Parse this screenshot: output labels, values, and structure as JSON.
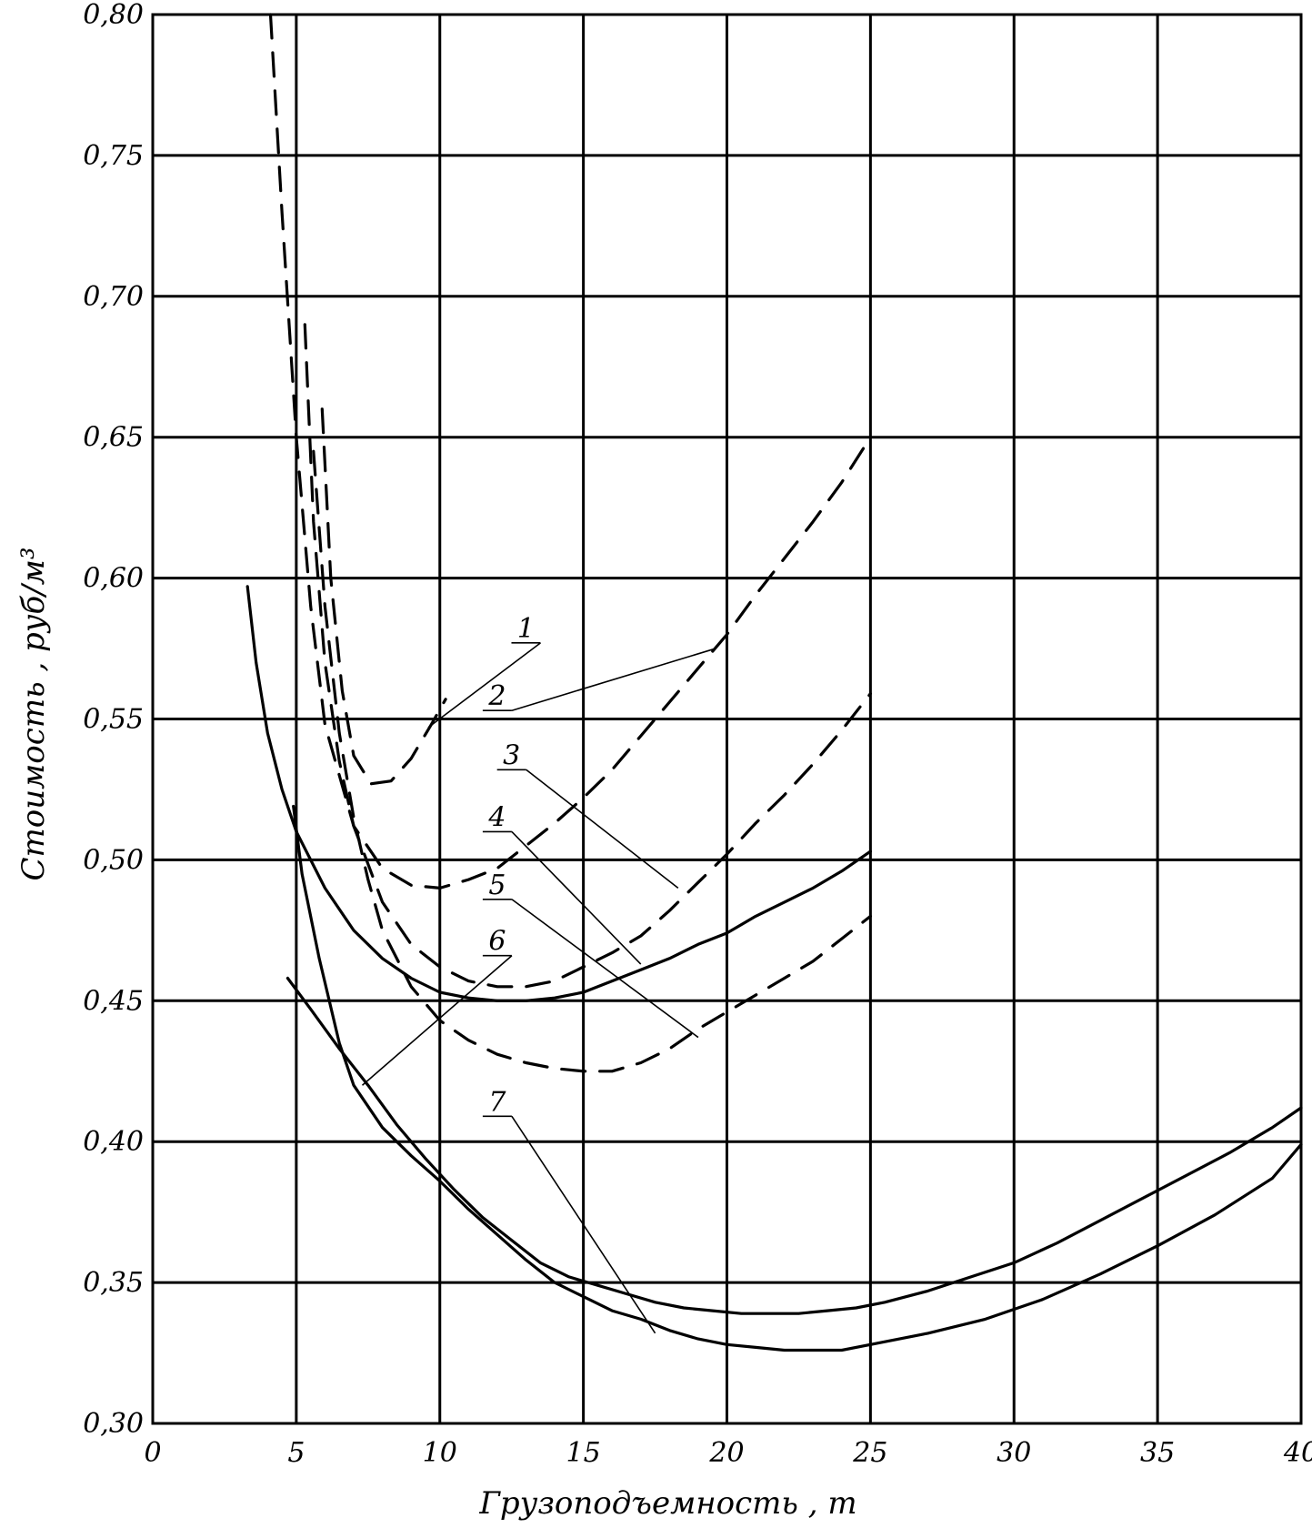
{
  "chart_data": {
    "type": "line",
    "xlabel": "Грузоподъемность , т",
    "ylabel": "Стоимость , руб/м³",
    "xlim": [
      0,
      40
    ],
    "ylim": [
      0.3,
      0.8
    ],
    "grid": true,
    "x_ticks": [
      {
        "value": 0,
        "label": "0"
      },
      {
        "value": 5,
        "label": "5"
      },
      {
        "value": 10,
        "label": "10"
      },
      {
        "value": 15,
        "label": "15"
      },
      {
        "value": 20,
        "label": "20"
      },
      {
        "value": 25,
        "label": "25"
      },
      {
        "value": 30,
        "label": "30"
      },
      {
        "value": 35,
        "label": "35"
      },
      {
        "value": 40,
        "label": "40"
      }
    ],
    "y_ticks": [
      {
        "value": 0.3,
        "label": "0,30"
      },
      {
        "value": 0.35,
        "label": "0,35"
      },
      {
        "value": 0.4,
        "label": "0,40"
      },
      {
        "value": 0.45,
        "label": "0,45"
      },
      {
        "value": 0.5,
        "label": "0,50"
      },
      {
        "value": 0.55,
        "label": "0,55"
      },
      {
        "value": 0.6,
        "label": "0,60"
      },
      {
        "value": 0.65,
        "label": "0,65"
      },
      {
        "value": 0.7,
        "label": "0,70"
      },
      {
        "value": 0.75,
        "label": "0,75"
      },
      {
        "value": 0.8,
        "label": "0,80"
      }
    ],
    "series": [
      {
        "name": "1",
        "style": "dashed",
        "points": [
          [
            5.9,
            0.66
          ],
          [
            6.2,
            0.6
          ],
          [
            6.6,
            0.56
          ],
          [
            7.0,
            0.537
          ],
          [
            7.6,
            0.527
          ],
          [
            8.3,
            0.528
          ],
          [
            9.0,
            0.536
          ],
          [
            9.7,
            0.548
          ],
          [
            10.2,
            0.557
          ]
        ],
        "label_anchor": [
          13.0,
          0.577
        ],
        "leader_to": [
          9.6,
          0.547
        ]
      },
      {
        "name": "2",
        "style": "dashed",
        "points": [
          [
            4.1,
            0.8
          ],
          [
            4.5,
            0.73
          ],
          [
            5.0,
            0.65
          ],
          [
            5.5,
            0.59
          ],
          [
            6.0,
            0.548
          ],
          [
            7.0,
            0.512
          ],
          [
            8.0,
            0.497
          ],
          [
            9.0,
            0.491
          ],
          [
            10.0,
            0.49
          ],
          [
            11.0,
            0.493
          ],
          [
            12.0,
            0.497
          ],
          [
            13.0,
            0.505
          ],
          [
            14.0,
            0.513
          ],
          [
            15.0,
            0.522
          ],
          [
            16.0,
            0.532
          ],
          [
            17.0,
            0.544
          ],
          [
            18.0,
            0.556
          ],
          [
            19.0,
            0.568
          ],
          [
            20.0,
            0.58
          ],
          [
            21.0,
            0.594
          ],
          [
            22.0,
            0.607
          ],
          [
            23.0,
            0.62
          ],
          [
            24.0,
            0.634
          ],
          [
            25.0,
            0.65
          ]
        ],
        "label_anchor": [
          12.0,
          0.553
        ],
        "leader_to": [
          19.6,
          0.575
        ]
      },
      {
        "name": "3",
        "style": "dashed",
        "points": [
          [
            5.3,
            0.69
          ],
          [
            5.6,
            0.62
          ],
          [
            6.0,
            0.57
          ],
          [
            6.5,
            0.535
          ],
          [
            7.0,
            0.512
          ],
          [
            8.0,
            0.485
          ],
          [
            9.0,
            0.47
          ],
          [
            10.0,
            0.462
          ],
          [
            11.0,
            0.457
          ],
          [
            12.0,
            0.455
          ],
          [
            13.0,
            0.455
          ],
          [
            14.0,
            0.457
          ],
          [
            15.0,
            0.462
          ],
          [
            16.0,
            0.467
          ],
          [
            17.0,
            0.473
          ],
          [
            18.0,
            0.482
          ],
          [
            19.0,
            0.492
          ],
          [
            20.0,
            0.502
          ],
          [
            21.0,
            0.513
          ],
          [
            22.0,
            0.523
          ],
          [
            23.0,
            0.534
          ],
          [
            24.0,
            0.546
          ],
          [
            25.0,
            0.559
          ]
        ],
        "label_anchor": [
          12.5,
          0.532
        ],
        "leader_to": [
          18.3,
          0.49
        ]
      },
      {
        "name": "4",
        "style": "dashed",
        "points": [
          [
            5.6,
            0.645
          ],
          [
            6.0,
            0.59
          ],
          [
            6.5,
            0.545
          ],
          [
            7.0,
            0.515
          ],
          [
            7.5,
            0.493
          ],
          [
            8.0,
            0.475
          ],
          [
            9.0,
            0.455
          ],
          [
            10.0,
            0.443
          ],
          [
            11.0,
            0.436
          ],
          [
            12.0,
            0.431
          ],
          [
            13.0,
            0.428
          ],
          [
            14.0,
            0.426
          ],
          [
            15.0,
            0.425
          ],
          [
            16.0,
            0.425
          ],
          [
            17.0,
            0.428
          ],
          [
            18.0,
            0.433
          ],
          [
            19.0,
            0.44
          ],
          [
            20.0,
            0.446
          ],
          [
            21.0,
            0.452
          ],
          [
            22.0,
            0.458
          ],
          [
            23.0,
            0.464
          ],
          [
            24.0,
            0.472
          ],
          [
            25.0,
            0.48
          ]
        ],
        "label_anchor": [
          12.0,
          0.51
        ],
        "leader_to": [
          17.0,
          0.463
        ]
      },
      {
        "name": "5",
        "style": "solid",
        "points": [
          [
            3.3,
            0.597
          ],
          [
            3.6,
            0.57
          ],
          [
            4.0,
            0.545
          ],
          [
            4.5,
            0.525
          ],
          [
            5.0,
            0.51
          ],
          [
            6.0,
            0.49
          ],
          [
            7.0,
            0.475
          ],
          [
            8.0,
            0.465
          ],
          [
            9.0,
            0.458
          ],
          [
            10.0,
            0.453
          ],
          [
            11.0,
            0.451
          ],
          [
            12.0,
            0.45
          ],
          [
            13.0,
            0.45
          ],
          [
            14.0,
            0.451
          ],
          [
            15.0,
            0.453
          ],
          [
            16.0,
            0.457
          ],
          [
            17.0,
            0.461
          ],
          [
            18.0,
            0.465
          ],
          [
            19.0,
            0.47
          ],
          [
            20.0,
            0.474
          ],
          [
            21.0,
            0.48
          ],
          [
            22.0,
            0.485
          ],
          [
            23.0,
            0.49
          ],
          [
            24.0,
            0.496
          ],
          [
            25.0,
            0.503
          ]
        ],
        "label_anchor": [
          12.0,
          0.486
        ],
        "leader_to": [
          19.0,
          0.437
        ]
      },
      {
        "name": "6",
        "style": "solid",
        "points": [
          [
            4.9,
            0.519
          ],
          [
            5.2,
            0.495
          ],
          [
            5.8,
            0.465
          ],
          [
            6.5,
            0.435
          ],
          [
            7.0,
            0.42
          ],
          [
            8.0,
            0.405
          ],
          [
            9.0,
            0.395
          ],
          [
            10.0,
            0.386
          ],
          [
            11.0,
            0.376
          ],
          [
            12.0,
            0.367
          ],
          [
            13.0,
            0.358
          ],
          [
            14.0,
            0.35
          ],
          [
            15.0,
            0.345
          ],
          [
            16.0,
            0.34
          ],
          [
            17.0,
            0.337
          ],
          [
            18.0,
            0.333
          ],
          [
            19.0,
            0.33
          ],
          [
            20.0,
            0.328
          ],
          [
            21.0,
            0.327
          ],
          [
            22.0,
            0.326
          ],
          [
            23.0,
            0.326
          ],
          [
            24.0,
            0.326
          ],
          [
            25.0,
            0.328
          ],
          [
            27.0,
            0.332
          ],
          [
            29.0,
            0.337
          ],
          [
            31.0,
            0.344
          ],
          [
            33.0,
            0.353
          ],
          [
            35.0,
            0.363
          ],
          [
            37.0,
            0.374
          ],
          [
            39.0,
            0.387
          ],
          [
            40.0,
            0.399
          ]
        ],
        "label_anchor": [
          12.0,
          0.466
        ],
        "leader_to": [
          7.3,
          0.42
        ]
      },
      {
        "name": "7",
        "style": "solid",
        "points": [
          [
            4.7,
            0.458
          ],
          [
            5.5,
            0.447
          ],
          [
            6.5,
            0.433
          ],
          [
            7.5,
            0.42
          ],
          [
            8.5,
            0.406
          ],
          [
            9.5,
            0.394
          ],
          [
            10.5,
            0.383
          ],
          [
            11.5,
            0.373
          ],
          [
            12.5,
            0.365
          ],
          [
            13.5,
            0.357
          ],
          [
            14.5,
            0.352
          ],
          [
            15.5,
            0.349
          ],
          [
            16.5,
            0.346
          ],
          [
            17.5,
            0.343
          ],
          [
            18.5,
            0.341
          ],
          [
            19.5,
            0.34
          ],
          [
            20.5,
            0.339
          ],
          [
            21.5,
            0.339
          ],
          [
            22.5,
            0.339
          ],
          [
            23.5,
            0.34
          ],
          [
            24.5,
            0.341
          ],
          [
            25.5,
            0.343
          ],
          [
            27.0,
            0.347
          ],
          [
            28.5,
            0.352
          ],
          [
            30.0,
            0.357
          ],
          [
            31.5,
            0.364
          ],
          [
            33.0,
            0.372
          ],
          [
            34.5,
            0.38
          ],
          [
            36.0,
            0.388
          ],
          [
            37.5,
            0.396
          ],
          [
            39.0,
            0.405
          ],
          [
            40.0,
            0.412
          ]
        ],
        "label_anchor": [
          12.0,
          0.409
        ],
        "leader_to": [
          17.5,
          0.332
        ]
      }
    ]
  }
}
